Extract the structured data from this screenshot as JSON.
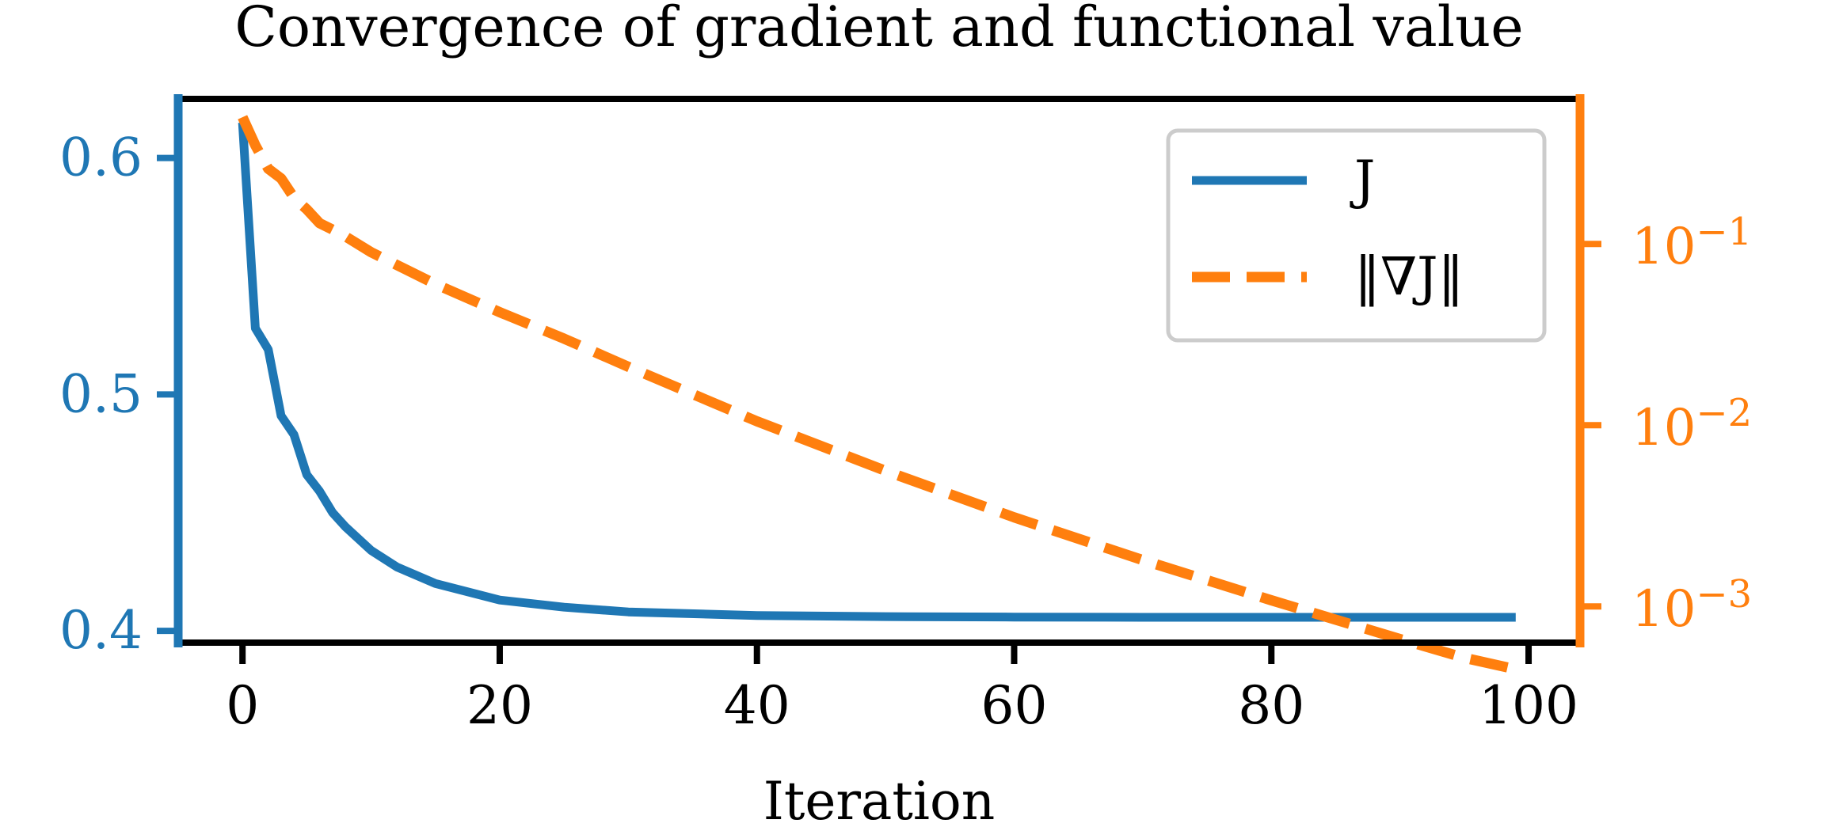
{
  "chart_data": {
    "type": "line",
    "title": "Convergence of gradient and functional value",
    "xlabel": "Iteration",
    "ylabel": "",
    "y2label": "",
    "xlim": [
      -5,
      104
    ],
    "ylim_left": [
      0.395,
      0.625
    ],
    "ylim_right_log10": [
      -3.2,
      -0.2
    ],
    "x_ticks": [
      0,
      20,
      40,
      60,
      80,
      100
    ],
    "x_tick_labels": [
      "0",
      "20",
      "40",
      "60",
      "80",
      "100"
    ],
    "y_left_ticks": [
      0.4,
      0.5,
      0.6
    ],
    "y_left_tick_labels": [
      "0.4",
      "0.5",
      "0.6"
    ],
    "y_right_ticks": [
      0.1,
      0.01,
      0.001
    ],
    "y_right_tick_labels": [
      {
        "base": "10",
        "exp": "−1"
      },
      {
        "base": "10",
        "exp": "−2"
      },
      {
        "base": "10",
        "exp": "−3"
      }
    ],
    "right_axis_scale": "log",
    "legend_position": "top-right",
    "colors": {
      "J": "#1f77b4",
      "gradJ": "#ff7f0e",
      "axes": "#000000",
      "legend_frame": "#cccccc"
    },
    "series": [
      {
        "name": "J",
        "axis": "left",
        "style": "solid",
        "x": [
          0,
          1,
          2,
          3,
          4,
          5,
          6,
          7,
          8,
          10,
          12,
          15,
          20,
          25,
          30,
          40,
          50,
          60,
          70,
          80,
          90,
          99
        ],
        "y": [
          0.615,
          0.528,
          0.519,
          0.491,
          0.483,
          0.466,
          0.459,
          0.45,
          0.444,
          0.434,
          0.427,
          0.42,
          0.413,
          0.41,
          0.408,
          0.4065,
          0.406,
          0.4058,
          0.4057,
          0.4057,
          0.4057,
          0.4057
        ]
      },
      {
        "name": "‖∇J‖",
        "axis": "right",
        "style": "dashed",
        "x": [
          0,
          1,
          2,
          3,
          4,
          5,
          6,
          7,
          8,
          10,
          15,
          20,
          25,
          30,
          40,
          50,
          60,
          70,
          80,
          90,
          95,
          99
        ],
        "y": [
          0.5,
          0.35,
          0.26,
          0.23,
          0.18,
          0.155,
          0.13,
          0.12,
          0.11,
          0.09,
          0.06,
          0.042,
          0.03,
          0.021,
          0.0105,
          0.0056,
          0.0031,
          0.0018,
          0.00108,
          0.00066,
          0.00052,
          0.00045
        ]
      }
    ]
  }
}
